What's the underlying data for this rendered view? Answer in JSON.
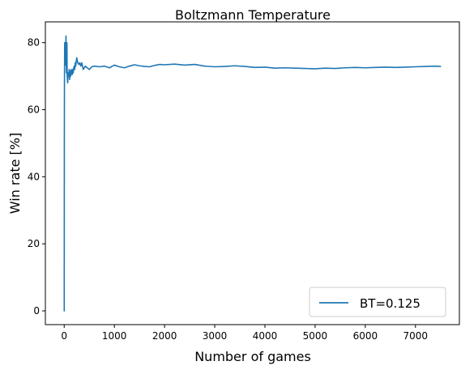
{
  "chart_data": {
    "type": "line",
    "title": "Boltzmann Temperature",
    "xlabel": "Number of games",
    "ylabel": "Win rate [%]",
    "xlim": [
      -375,
      7875
    ],
    "ylim": [
      -4.1,
      86.2
    ],
    "xticks": [
      0,
      1000,
      2000,
      3000,
      4000,
      5000,
      6000,
      7000
    ],
    "yticks": [
      0,
      20,
      40,
      60,
      80
    ],
    "grid": false,
    "legend_position": "lower-right",
    "series": [
      {
        "name": "BT=0.125",
        "color": "#1f77b4",
        "x": [
          1,
          3,
          5,
          8,
          10,
          12,
          15,
          18,
          20,
          25,
          30,
          35,
          40,
          45,
          50,
          55,
          60,
          70,
          80,
          90,
          100,
          110,
          120,
          130,
          140,
          150,
          160,
          170,
          180,
          190,
          200,
          210,
          220,
          230,
          240,
          250,
          270,
          290,
          310,
          330,
          350,
          380,
          420,
          460,
          500,
          550,
          600,
          700,
          800,
          900,
          1000,
          1100,
          1200,
          1300,
          1400,
          1500,
          1600,
          1700,
          1800,
          1900,
          2000,
          2200,
          2400,
          2600,
          2800,
          3000,
          3200,
          3400,
          3600,
          3800,
          4000,
          4200,
          4400,
          4600,
          4800,
          5000,
          5200,
          5400,
          5600,
          5800,
          6000,
          6200,
          6400,
          6600,
          6800,
          7000,
          7200,
          7400,
          7500
        ],
        "y": [
          0,
          50,
          66.7,
          75,
          80,
          75,
          73.3,
          77.8,
          80,
          76,
          73.3,
          82,
          78,
          71,
          74,
          80,
          70,
          68,
          71,
          70,
          72,
          69,
          71.5,
          70,
          72,
          71,
          70.5,
          72,
          71,
          72.5,
          73,
          72,
          74,
          73,
          74.5,
          75.5,
          74,
          73.5,
          74,
          73,
          74,
          72,
          73,
          72.5,
          72,
          72.8,
          73,
          72.8,
          73,
          72.5,
          73.3,
          72.8,
          72.5,
          73,
          73.4,
          73.1,
          72.9,
          72.8,
          73.2,
          73.5,
          73.4,
          73.6,
          73.3,
          73.5,
          73,
          72.8,
          72.9,
          73.1,
          72.9,
          72.6,
          72.7,
          72.4,
          72.5,
          72.4,
          72.3,
          72.2,
          72.4,
          72.3,
          72.5,
          72.6,
          72.5,
          72.6,
          72.7,
          72.6,
          72.7,
          72.8,
          72.9,
          73,
          72.9
        ]
      }
    ]
  }
}
